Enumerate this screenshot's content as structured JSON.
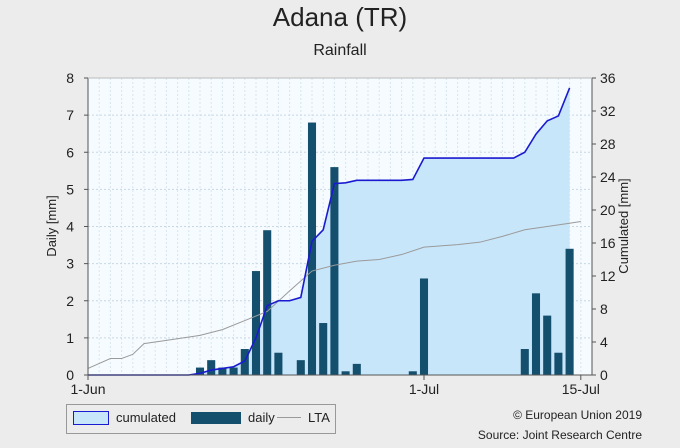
{
  "title": "Adana (TR)",
  "subtitle": "Rainfall",
  "legend": {
    "cumulated": "cumulated",
    "daily": "daily",
    "lta": "LTA"
  },
  "copyright": "© European Union 2019",
  "source": "Source: Joint Research Centre",
  "colors": {
    "cumulated_fill": "#c8e6fa",
    "cumulated_line": "#1a1ad0",
    "daily_bar": "#14506e",
    "lta_line": "#9a9a9a",
    "plot_bg": "#f5fbff"
  },
  "chart_data": {
    "type": "bar",
    "title": "Adana (TR)",
    "subtitle": "Rainfall",
    "ylabel": "Daily [mm]",
    "y2label": "Cumulated [mm]",
    "ylim": [
      0,
      8
    ],
    "y2lim": [
      0,
      36
    ],
    "yticks": [
      0,
      1,
      2,
      3,
      4,
      5,
      6,
      7,
      8
    ],
    "y2ticks": [
      0,
      4,
      8,
      12,
      16,
      20,
      24,
      28,
      32,
      36
    ],
    "x_domain": [
      "2019-06-01",
      "2019-07-16"
    ],
    "xticks": [
      {
        "date": "2019-06-01",
        "label": "1-Jun"
      },
      {
        "date": "2019-07-01",
        "label": "1-Jul"
      },
      {
        "date": "2019-07-15",
        "label": "15-Jul"
      }
    ],
    "grid": true,
    "legend_position": "bottom-left",
    "series": [
      {
        "name": "daily",
        "type": "bar",
        "axis": "left",
        "points": [
          [
            "2019-06-06",
            0.0
          ],
          [
            "2019-06-07",
            0.0
          ],
          [
            "2019-06-08",
            0.0
          ],
          [
            "2019-06-11",
            0.2
          ],
          [
            "2019-06-12",
            0.4
          ],
          [
            "2019-06-13",
            0.2
          ],
          [
            "2019-06-14",
            0.2
          ],
          [
            "2019-06-15",
            0.7
          ],
          [
            "2019-06-16",
            2.8
          ],
          [
            "2019-06-17",
            3.9
          ],
          [
            "2019-06-18",
            0.6
          ],
          [
            "2019-06-20",
            0.4
          ],
          [
            "2019-06-21",
            6.8
          ],
          [
            "2019-06-22",
            1.4
          ],
          [
            "2019-06-23",
            5.6
          ],
          [
            "2019-06-24",
            0.1
          ],
          [
            "2019-06-25",
            0.3
          ],
          [
            "2019-06-30",
            0.1
          ],
          [
            "2019-07-01",
            2.6
          ],
          [
            "2019-07-10",
            0.7
          ],
          [
            "2019-07-11",
            2.2
          ],
          [
            "2019-07-12",
            1.6
          ],
          [
            "2019-07-13",
            0.6
          ],
          [
            "2019-07-14",
            3.4
          ]
        ]
      },
      {
        "name": "cumulated",
        "type": "area",
        "axis": "right",
        "points": [
          [
            "2019-06-01",
            0.0
          ],
          [
            "2019-06-10",
            0.0
          ],
          [
            "2019-06-11",
            0.2
          ],
          [
            "2019-06-12",
            0.6
          ],
          [
            "2019-06-13",
            0.8
          ],
          [
            "2019-06-14",
            1.0
          ],
          [
            "2019-06-15",
            1.7
          ],
          [
            "2019-06-16",
            4.5
          ],
          [
            "2019-06-17",
            8.4
          ],
          [
            "2019-06-18",
            9.0
          ],
          [
            "2019-06-19",
            9.0
          ],
          [
            "2019-06-20",
            9.4
          ],
          [
            "2019-06-21",
            16.2
          ],
          [
            "2019-06-22",
            17.6
          ],
          [
            "2019-06-23",
            23.2
          ],
          [
            "2019-06-24",
            23.3
          ],
          [
            "2019-06-25",
            23.6
          ],
          [
            "2019-06-29",
            23.6
          ],
          [
            "2019-06-30",
            23.7
          ],
          [
            "2019-07-01",
            26.3
          ],
          [
            "2019-07-09",
            26.3
          ],
          [
            "2019-07-10",
            27.0
          ],
          [
            "2019-07-11",
            29.2
          ],
          [
            "2019-07-12",
            30.8
          ],
          [
            "2019-07-13",
            31.4
          ],
          [
            "2019-07-14",
            34.8
          ]
        ]
      },
      {
        "name": "LTA",
        "type": "line",
        "axis": "right",
        "points": [
          [
            "2019-06-01",
            0.8
          ],
          [
            "2019-06-03",
            2.0
          ],
          [
            "2019-06-04",
            2.0
          ],
          [
            "2019-06-05",
            2.5
          ],
          [
            "2019-06-06",
            3.8
          ],
          [
            "2019-06-08",
            4.2
          ],
          [
            "2019-06-11",
            4.8
          ],
          [
            "2019-06-13",
            5.5
          ],
          [
            "2019-06-15",
            6.6
          ],
          [
            "2019-06-17",
            7.7
          ],
          [
            "2019-06-19",
            10.2
          ],
          [
            "2019-06-21",
            12.6
          ],
          [
            "2019-06-23",
            13.3
          ],
          [
            "2019-06-25",
            13.8
          ],
          [
            "2019-06-27",
            14.0
          ],
          [
            "2019-06-29",
            14.6
          ],
          [
            "2019-07-01",
            15.5
          ],
          [
            "2019-07-04",
            15.8
          ],
          [
            "2019-07-06",
            16.1
          ],
          [
            "2019-07-08",
            16.8
          ],
          [
            "2019-07-10",
            17.6
          ],
          [
            "2019-07-12",
            18.0
          ],
          [
            "2019-07-14",
            18.4
          ],
          [
            "2019-07-15",
            18.6
          ]
        ]
      }
    ]
  }
}
